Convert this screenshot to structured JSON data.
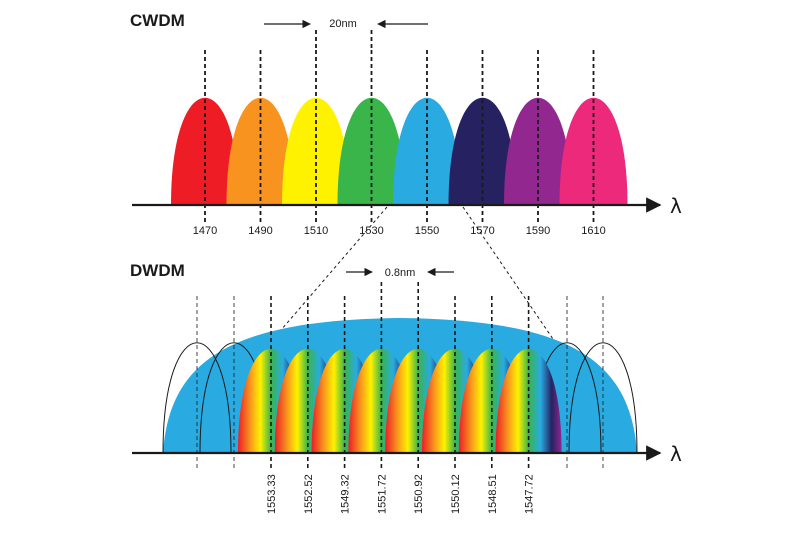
{
  "cwdm": {
    "title": "CWDM",
    "spacing_label": "20nm",
    "axis_symbol": "λ",
    "channels": [
      {
        "wavelength": "1470",
        "color": "#ee1c25"
      },
      {
        "wavelength": "1490",
        "color": "#f7931e"
      },
      {
        "wavelength": "1510",
        "color": "#fff200"
      },
      {
        "wavelength": "1530",
        "color": "#39b54a"
      },
      {
        "wavelength": "1550",
        "color": "#29abe2"
      },
      {
        "wavelength": "1570",
        "color": "#262262"
      },
      {
        "wavelength": "1590",
        "color": "#92278f"
      },
      {
        "wavelength": "1610",
        "color": "#ec297b"
      }
    ]
  },
  "dwdm": {
    "title": "DWDM",
    "spacing_label": "0.8nm",
    "axis_symbol": "λ",
    "envelope_color": "#29abe2",
    "channels": [
      "1553.33",
      "1552.52",
      "1549.32",
      "1551.72",
      "1550.92",
      "1550.12",
      "1548.51",
      "1547.72"
    ]
  }
}
